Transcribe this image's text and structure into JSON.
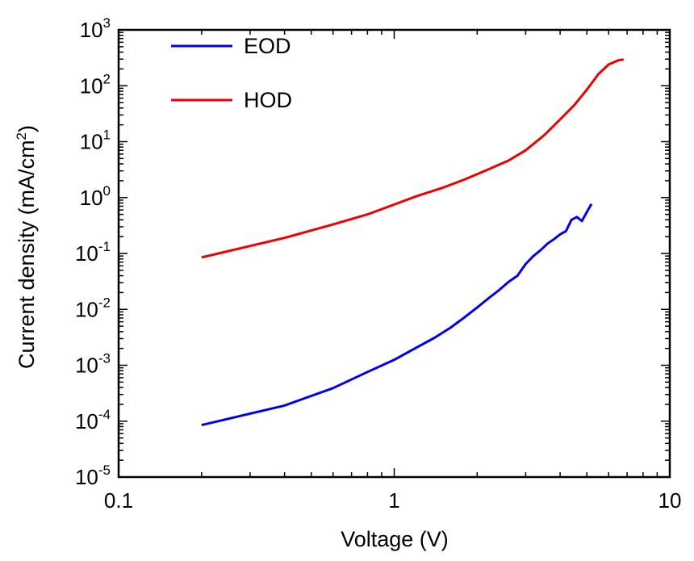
{
  "chart_data": {
    "type": "line",
    "xlabel": "Voltage (V)",
    "ylabel": "Current density (mA/cm",
    "ylabel_sup": "2",
    "ylabel_tail": ")",
    "x_scale": "log",
    "y_scale": "log",
    "xlim": [
      0.1,
      10
    ],
    "ylim": [
      1e-05,
      1000
    ],
    "grid": false,
    "legend_position": "top-left",
    "x_ticks": [
      {
        "value": 0.1,
        "label": "0.1"
      },
      {
        "value": 1,
        "label": "1"
      },
      {
        "value": 10,
        "label": "10"
      }
    ],
    "y_ticks": [
      {
        "value": 1e-05,
        "base": "10",
        "exp": "-5"
      },
      {
        "value": 0.0001,
        "base": "10",
        "exp": "-4"
      },
      {
        "value": 0.001,
        "base": "10",
        "exp": "-3"
      },
      {
        "value": 0.01,
        "base": "10",
        "exp": "-2"
      },
      {
        "value": 0.1,
        "base": "10",
        "exp": "-1"
      },
      {
        "value": 1,
        "base": "10",
        "exp": "0"
      },
      {
        "value": 10,
        "base": "10",
        "exp": "1"
      },
      {
        "value": 100,
        "base": "10",
        "exp": "2"
      },
      {
        "value": 1000,
        "base": "10",
        "exp": "3"
      }
    ],
    "series": [
      {
        "name": "EOD",
        "color": "#0000ee",
        "x": [
          0.2,
          0.4,
          0.6,
          0.8,
          1.0,
          1.2,
          1.4,
          1.6,
          1.8,
          2.0,
          2.2,
          2.4,
          2.6,
          2.8,
          3.0,
          3.2,
          3.4,
          3.6,
          3.8,
          4.0,
          4.2,
          4.4,
          4.6,
          4.8,
          5.0,
          5.2
        ],
        "y": [
          8.5e-05,
          0.00019,
          0.00039,
          0.00076,
          0.00125,
          0.00205,
          0.0031,
          0.0047,
          0.0072,
          0.0108,
          0.0158,
          0.022,
          0.031,
          0.04,
          0.065,
          0.09,
          0.115,
          0.15,
          0.18,
          0.22,
          0.25,
          0.4,
          0.45,
          0.38,
          0.55,
          0.77
        ]
      },
      {
        "name": "HOD",
        "color": "#ee0000",
        "x": [
          0.2,
          0.4,
          0.6,
          0.8,
          1.0,
          1.2,
          1.5,
          1.8,
          2.2,
          2.6,
          3.0,
          3.5,
          4.0,
          4.5,
          5.0,
          5.5,
          6.0,
          6.5,
          6.8
        ],
        "y": [
          0.085,
          0.19,
          0.33,
          0.5,
          0.75,
          1.05,
          1.5,
          2.1,
          3.2,
          4.6,
          7.0,
          13,
          25,
          45,
          85,
          160,
          240,
          285,
          295
        ]
      }
    ]
  }
}
